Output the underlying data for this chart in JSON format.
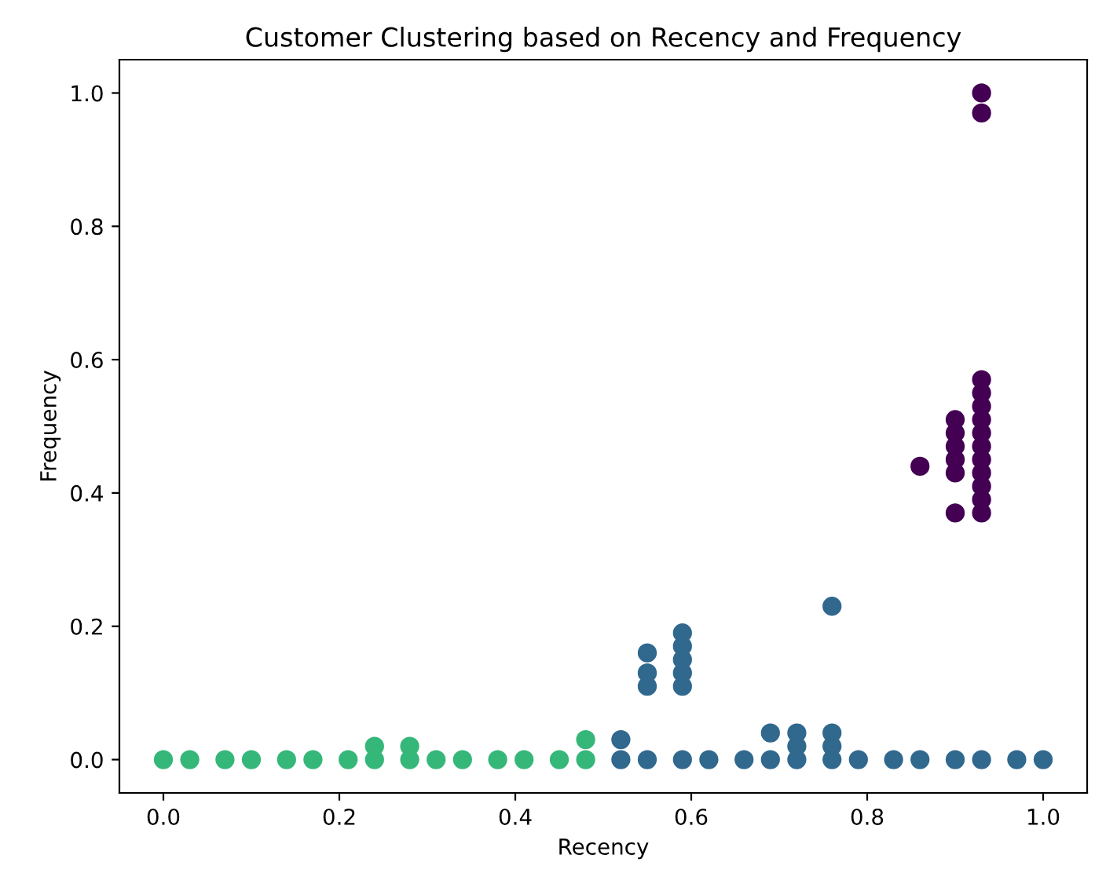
{
  "chart_data": {
    "type": "scatter",
    "title": "Customer Clustering based on Recency and Frequency",
    "xlabel": "Recency",
    "ylabel": "Frequency",
    "xlim": [
      -0.05,
      1.05
    ],
    "ylim": [
      -0.05,
      1.05
    ],
    "xticks": [
      {
        "value": 0,
        "label": "0.0"
      },
      0.2,
      0.4,
      0.6,
      0.8,
      {
        "value": 1,
        "label": "1.0"
      }
    ],
    "yticks": [
      {
        "value": 0,
        "label": "0.0"
      },
      0.2,
      0.4,
      0.6,
      0.8,
      {
        "value": 1,
        "label": "1.0"
      }
    ],
    "grid": false,
    "marker": "circle",
    "series": [
      {
        "color": "#35b779",
        "x": [
          0,
          0.03,
          0.07,
          0.1,
          0.14,
          0.17,
          0.21,
          0.24,
          0.24,
          0.28,
          0.28,
          0.31,
          0.34,
          0.38,
          0.41,
          0.45,
          0.48,
          0.48
        ],
        "values": [
          0,
          0,
          0,
          0,
          0,
          0,
          0,
          0,
          0.02,
          0,
          0.02,
          0,
          0,
          0,
          0,
          0,
          0,
          0.03
        ]
      },
      {
        "color": "#31688e",
        "x": [
          0.52,
          0.52,
          0.55,
          0.55,
          0.55,
          0.55,
          0.59,
          0.59,
          0.59,
          0.59,
          0.59,
          0.59,
          0.62,
          0.66,
          0.69,
          0.69,
          0.72,
          0.72,
          0.72,
          0.76,
          0.76,
          0.76,
          0.76,
          0.79,
          0.83,
          0.86,
          0.9,
          0.93,
          0.97,
          1.0
        ],
        "values": [
          0,
          0.03,
          0,
          0.11,
          0.13,
          0.16,
          0,
          0.11,
          0.13,
          0.15,
          0.17,
          0.19,
          0,
          0,
          0,
          0.04,
          0,
          0.02,
          0.04,
          0,
          0.02,
          0.04,
          0.23,
          0,
          0,
          0,
          0,
          0,
          0,
          0
        ]
      },
      {
        "color": "#440154",
        "x": [
          0.86,
          0.9,
          0.9,
          0.9,
          0.9,
          0.9,
          0.9,
          0.93,
          0.93,
          0.93,
          0.93,
          0.93,
          0.93,
          0.93,
          0.93,
          0.93,
          0.93,
          0.93,
          0.93,
          0.93
        ],
        "values": [
          0.44,
          0.37,
          0.43,
          0.45,
          0.47,
          0.49,
          0.51,
          0.37,
          0.39,
          0.41,
          0.43,
          0.45,
          0.47,
          0.49,
          0.51,
          0.53,
          0.55,
          0.57,
          0.97,
          1.0
        ]
      }
    ]
  }
}
